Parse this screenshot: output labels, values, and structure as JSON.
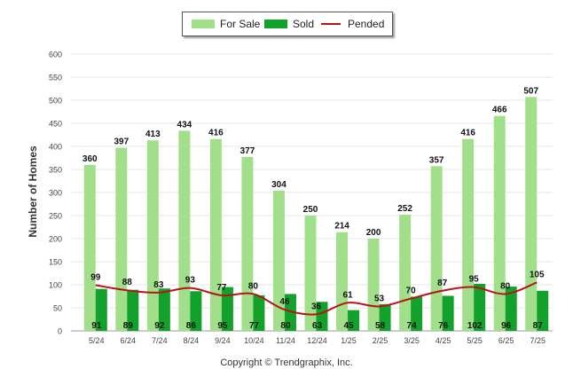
{
  "legend": {
    "for_sale": "For Sale",
    "sold": "Sold",
    "pended": "Pended"
  },
  "copyright": "Copyright © Trendgraphix, Inc.",
  "chart_data": {
    "type": "bar",
    "ylabel": "Number of Homes",
    "xlabel": "",
    "ylim": [
      0,
      600
    ],
    "yticks": [
      0,
      50,
      100,
      150,
      200,
      250,
      300,
      350,
      400,
      450,
      500,
      550,
      600
    ],
    "grid": true,
    "legend_position": "top-center",
    "categories": [
      "5/24",
      "6/24",
      "7/24",
      "8/24",
      "9/24",
      "10/24",
      "11/24",
      "12/24",
      "1/25",
      "2/25",
      "3/25",
      "4/25",
      "5/25",
      "6/25",
      "7/25"
    ],
    "series": [
      {
        "name": "For Sale",
        "type": "bar",
        "color": "#a1df8b",
        "values": [
          360,
          397,
          413,
          434,
          416,
          377,
          304,
          250,
          214,
          200,
          252,
          357,
          416,
          466,
          507
        ]
      },
      {
        "name": "Sold",
        "type": "bar",
        "color": "#12a12b",
        "values": [
          91,
          89,
          92,
          86,
          95,
          77,
          80,
          63,
          45,
          58,
          74,
          76,
          102,
          96,
          87
        ]
      },
      {
        "name": "Pended",
        "type": "line",
        "color": "#b81417",
        "values": [
          99,
          88,
          83,
          93,
          77,
          80,
          46,
          36,
          61,
          53,
          70,
          87,
          95,
          80,
          105
        ]
      }
    ]
  }
}
